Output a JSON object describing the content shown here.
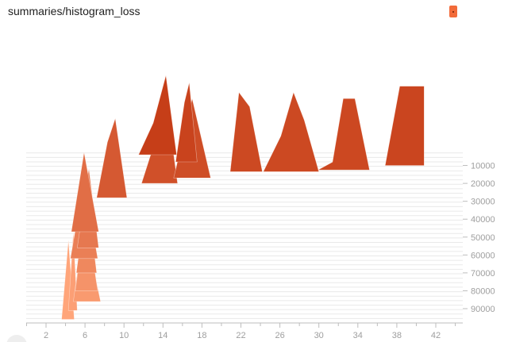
{
  "card": {
    "title": "summaries/histogram_loss"
  },
  "chart_data": {
    "type": "area",
    "mode": "offset",
    "xticks": [
      2,
      6,
      10,
      14,
      18,
      22,
      26,
      30,
      34,
      38,
      42
    ],
    "yticks": [
      10000,
      20000,
      30000,
      40000,
      50000,
      60000,
      70000,
      80000,
      90000
    ],
    "xlim": [
      0,
      45
    ],
    "ylim": [
      0,
      95000
    ],
    "colors": {
      "newest": "#c43a14",
      "oldest": "#ffa57a",
      "guide": "#e0e0e0",
      "axis": "#bdbdbd"
    },
    "steps": [
      {
        "step": 4000,
        "points": [
          [
            11.5,
            0
          ],
          [
            13,
            40
          ],
          [
            14.3,
            100
          ],
          [
            15.4,
            0
          ]
        ]
      },
      {
        "step": 8000,
        "points": [
          [
            15.3,
            0
          ],
          [
            16.2,
            75
          ],
          [
            16.7,
            100
          ],
          [
            17.5,
            0
          ]
        ]
      },
      {
        "step": 13500,
        "points": [
          [
            20.9,
            0
          ],
          [
            21.8,
            100
          ],
          [
            22.9,
            82
          ],
          [
            24.2,
            0
          ]
        ]
      },
      {
        "step": 13500,
        "points": [
          [
            24.3,
            0
          ],
          [
            26.1,
            45
          ],
          [
            27.4,
            100
          ],
          [
            28.5,
            65
          ],
          [
            30,
            0
          ]
        ]
      },
      {
        "step": 12500,
        "points": [
          [
            29.9,
            0
          ],
          [
            31.4,
            10
          ],
          [
            32.5,
            90
          ],
          [
            33.7,
            90
          ],
          [
            35.2,
            0
          ]
        ]
      },
      {
        "step": 10000,
        "points": [
          [
            36.8,
            0
          ],
          [
            38.3,
            100
          ],
          [
            39.1,
            100
          ],
          [
            40.8,
            100
          ],
          [
            40.8,
            0
          ]
        ]
      },
      {
        "step": 20000,
        "points": [
          [
            11.8,
            0
          ],
          [
            14.4,
            100
          ],
          [
            15.5,
            0
          ]
        ]
      },
      {
        "step": 17000,
        "points": [
          [
            15.1,
            0
          ],
          [
            17,
            100
          ],
          [
            18.9,
            0
          ]
        ]
      },
      {
        "step": 28000,
        "points": [
          [
            7.2,
            0
          ],
          [
            8.3,
            70
          ],
          [
            9.1,
            100
          ],
          [
            10.3,
            0
          ]
        ]
      },
      {
        "step": 47000,
        "points": [
          [
            4.6,
            0
          ],
          [
            5.9,
            100
          ],
          [
            7.4,
            0
          ]
        ]
      },
      {
        "step": 56000,
        "points": [
          [
            5.2,
            0
          ],
          [
            6.4,
            100
          ],
          [
            7.4,
            0
          ]
        ]
      },
      {
        "step": 62000,
        "points": [
          [
            4.5,
            0
          ],
          [
            5.9,
            100
          ],
          [
            7.3,
            0
          ]
        ]
      },
      {
        "step": 70000,
        "points": [
          [
            5.1,
            0
          ],
          [
            6.2,
            100
          ],
          [
            7.2,
            0
          ]
        ]
      },
      {
        "step": 80000,
        "points": [
          [
            5.0,
            0
          ],
          [
            6.1,
            100
          ],
          [
            7.3,
            0
          ]
        ]
      },
      {
        "step": 86000,
        "points": [
          [
            4.8,
            0
          ],
          [
            5.9,
            100
          ],
          [
            7.6,
            0
          ]
        ]
      },
      {
        "step": 91000,
        "points": [
          [
            4.3,
            0
          ],
          [
            4.8,
            100
          ],
          [
            5.2,
            0
          ]
        ]
      },
      {
        "step": 96000,
        "points": [
          [
            3.6,
            0
          ],
          [
            4.3,
            100
          ],
          [
            4.9,
            0
          ]
        ]
      }
    ]
  }
}
